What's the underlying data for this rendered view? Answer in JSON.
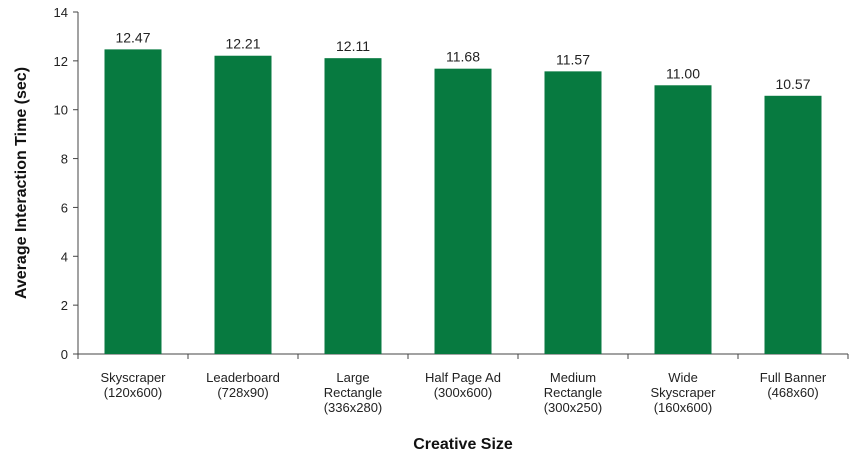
{
  "chart_data": {
    "type": "bar",
    "xlabel": "Creative Size",
    "ylabel": "Average Interaction Time (sec)",
    "ylim": [
      0,
      14
    ],
    "yticks": [
      0,
      2,
      4,
      6,
      8,
      10,
      12,
      14
    ],
    "grid": false,
    "bar_color": "#077a40",
    "categories": [
      [
        "Skyscraper",
        "(120x600)"
      ],
      [
        "Leaderboard",
        "(728x90)"
      ],
      [
        "Large",
        "Rectangle",
        "(336x280)"
      ],
      [
        "Half Page Ad",
        "(300x600)"
      ],
      [
        "Medium",
        "Rectangle",
        "(300x250)"
      ],
      [
        "Wide",
        "Skyscraper",
        "(160x600)"
      ],
      [
        "Full Banner",
        "(468x60)"
      ]
    ],
    "values": [
      12.47,
      12.21,
      12.11,
      11.68,
      11.57,
      11.0,
      10.57
    ],
    "value_labels": [
      "12.47",
      "12.21",
      "12.11",
      "11.68",
      "11.57",
      "11.00",
      "10.57"
    ]
  }
}
